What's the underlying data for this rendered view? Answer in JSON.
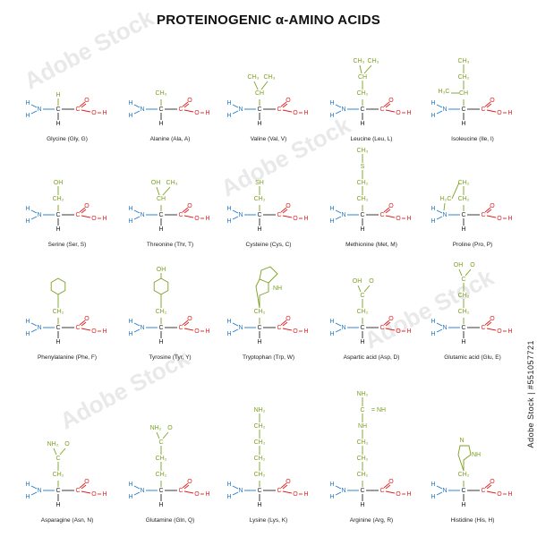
{
  "title": "PROTEINOGENIC α-AMINO ACIDS",
  "side_text": "Adobe Stock | #551057721",
  "watermark_text": "Adobe Stock",
  "colors": {
    "amine": "#1f78c8",
    "backbone": "#222222",
    "carboxyl": "#e02020",
    "side_chain": "#7aa020"
  },
  "acids": [
    {
      "label": "Glycine (Gly, G)"
    },
    {
      "label": "Alanine (Ala, A)"
    },
    {
      "label": "Valine (Val, V)"
    },
    {
      "label": "Leucine (Leu, L)"
    },
    {
      "label": "Isoleucine (Ile, I)"
    },
    {
      "label": "Serine (Ser, S)"
    },
    {
      "label": "Threonine (Thr, T)"
    },
    {
      "label": "Cysteine (Cys, C)"
    },
    {
      "label": "Methionine (Met, M)"
    },
    {
      "label": "Proline (Pro, P)"
    },
    {
      "label": "Phenylalanine (Phe, F)"
    },
    {
      "label": "Tyrosine (Tyr, Y)"
    },
    {
      "label": "Tryptophan (Trp, W)"
    },
    {
      "label": "Aspartic acid (Asp, D)"
    },
    {
      "label": "Glutamic acid (Glu, E)"
    },
    {
      "label": "Asparagine (Asn, N)"
    },
    {
      "label": "Glutamine (Gln, Q)"
    },
    {
      "label": "Lysine (Lys, K)"
    },
    {
      "label": "Arginine (Arg, R)"
    },
    {
      "label": "Histidine (His, H)"
    }
  ]
}
